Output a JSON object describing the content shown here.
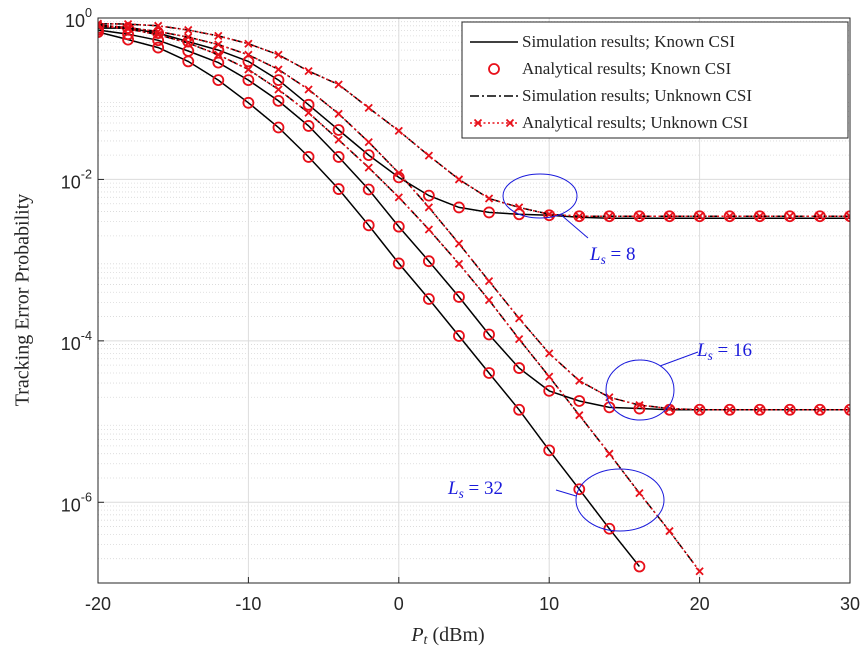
{
  "chart_data": {
    "type": "line",
    "ylabel": "Tracking Error Probability",
    "xlabel": "P_t (dBm)",
    "xlim": [
      -20,
      30
    ],
    "xticks": [
      -20,
      -10,
      0,
      10,
      20,
      30
    ],
    "ylim": [
      1e-07,
      1
    ],
    "ylog": true,
    "yticks": [
      {
        "value": 1,
        "label": "10^0"
      },
      {
        "value": 0.01,
        "label": "10^-2"
      },
      {
        "value": 0.0001,
        "label": "10^-4"
      },
      {
        "value": 1e-06,
        "label": "10^-6"
      }
    ],
    "grid": true,
    "legend": "upper right",
    "x": [
      -20,
      -18,
      -16,
      -14,
      -12,
      -10,
      -8,
      -6,
      -4,
      -2,
      0,
      2,
      4,
      6,
      8,
      10,
      12,
      14,
      16,
      18,
      20,
      22,
      24,
      26,
      28,
      30
    ],
    "series": [
      {
        "name": "Simulation results; Known CSI",
        "color": "#000000",
        "line": "solid",
        "marker": "none",
        "curves": [
          {
            "values": [
              0.75,
              0.75,
              0.65,
              0.51,
              0.4,
              0.29,
              0.17,
              0.084,
              0.041,
              0.02,
              0.0106,
              0.0063,
              0.0045,
              0.0039,
              0.0037,
              0.0036,
              0.0034,
              0.0033,
              0.0033,
              0.0033,
              0.0033,
              0.0033,
              0.0033,
              0.0033,
              0.0033,
              0.0033
            ]
          },
          {
            "values": [
              0.71,
              0.63,
              0.53,
              0.39,
              0.28,
              0.17,
              0.094,
              0.046,
              0.019,
              0.0075,
              0.0026,
              0.00097,
              0.00035,
              0.00012,
              4.6e-05,
              2.4e-05,
              1.8e-05,
              1.5e-05,
              1.45e-05,
              1.4e-05,
              1.4e-05,
              1.4e-05,
              1.4e-05,
              1.4e-05,
              1.4e-05,
              1.4e-05
            ]
          },
          {
            "values": [
              0.67,
              0.54,
              0.43,
              0.29,
              0.17,
              0.089,
              0.044,
              0.019,
              0.0076,
              0.0027,
              0.00091,
              0.00033,
              0.000115,
              4e-05,
              1.4e-05,
              4.4e-06,
              1.45e-06,
              4.7e-07,
              1.6e-07,
              null,
              null,
              null,
              null,
              null,
              null,
              null
            ]
          }
        ]
      },
      {
        "name": "Analytical results; Known CSI",
        "color": "#e8101a",
        "line": "none",
        "marker": "circle",
        "curves": [
          {
            "values": [
              0.75,
              0.75,
              0.65,
              0.51,
              0.4,
              0.29,
              0.17,
              0.084,
              0.041,
              0.02,
              0.0106,
              0.0063,
              0.0045,
              0.0039,
              0.0037,
              0.0036,
              0.0035,
              0.0035,
              0.0035,
              0.0035,
              0.0035,
              0.0035,
              0.0035,
              0.0035,
              0.0035,
              0.0035
            ]
          },
          {
            "values": [
              0.71,
              0.63,
              0.53,
              0.39,
              0.28,
              0.17,
              0.094,
              0.046,
              0.019,
              0.0075,
              0.0026,
              0.00097,
              0.00035,
              0.00012,
              4.6e-05,
              2.4e-05,
              1.8e-05,
              1.5e-05,
              1.45e-05,
              1.4e-05,
              1.4e-05,
              1.4e-05,
              1.4e-05,
              1.4e-05,
              1.4e-05,
              1.4e-05
            ]
          },
          {
            "values": [
              0.67,
              0.54,
              0.43,
              0.29,
              0.17,
              0.089,
              0.044,
              0.019,
              0.0076,
              0.0027,
              0.00091,
              0.00033,
              0.000115,
              4e-05,
              1.4e-05,
              4.4e-06,
              1.45e-06,
              4.7e-07,
              1.6e-07,
              null,
              null,
              null,
              null,
              null,
              null,
              null
            ]
          }
        ]
      },
      {
        "name": "Simulation results; Unknown CSI",
        "color": "#000000",
        "line": "dashdot",
        "marker": "none",
        "curves": [
          {
            "values": [
              0.85,
              0.84,
              0.8,
              0.71,
              0.6,
              0.48,
              0.35,
              0.22,
              0.15,
              0.077,
              0.04,
              0.0197,
              0.01,
              0.0058,
              0.0045,
              0.0037,
              0.0035,
              0.0035,
              0.0035,
              0.0035,
              0.0035,
              0.0035,
              0.0035,
              0.0035,
              0.0035,
              0.0035
            ]
          },
          {
            "values": [
              0.82,
              0.76,
              0.68,
              0.58,
              0.47,
              0.35,
              0.23,
              0.13,
              0.065,
              0.029,
              0.012,
              0.0045,
              0.0016,
              0.00055,
              0.00019,
              7e-05,
              3.2e-05,
              2e-05,
              1.6e-05,
              1.45e-05,
              1.4e-05,
              1.4e-05,
              1.4e-05,
              1.4e-05,
              1.4e-05,
              1.4e-05
            ]
          },
          {
            "values": [
              0.8,
              0.73,
              0.62,
              0.49,
              0.35,
              0.23,
              0.13,
              0.067,
              0.031,
              0.014,
              0.006,
              0.0024,
              0.0009,
              0.00032,
              0.000105,
              3.6e-05,
              1.2e-05,
              4e-06,
              1.3e-06,
              4.4e-07,
              1.4e-07,
              null,
              null,
              null,
              null,
              null
            ]
          }
        ]
      },
      {
        "name": "Analytical results; Unknown CSI",
        "color": "#e8101a",
        "line": "dotted",
        "marker": "x",
        "curves": [
          {
            "values": [
              0.85,
              0.84,
              0.8,
              0.71,
              0.6,
              0.48,
              0.35,
              0.22,
              0.15,
              0.077,
              0.04,
              0.0197,
              0.01,
              0.0058,
              0.0045,
              0.0037,
              0.0035,
              0.0035,
              0.0035,
              0.0035,
              0.0035,
              0.0035,
              0.0035,
              0.0035,
              0.0035,
              0.0035
            ]
          },
          {
            "values": [
              0.82,
              0.76,
              0.68,
              0.58,
              0.47,
              0.35,
              0.23,
              0.13,
              0.065,
              0.029,
              0.012,
              0.0045,
              0.0016,
              0.00055,
              0.00019,
              7e-05,
              3.2e-05,
              2e-05,
              1.6e-05,
              1.45e-05,
              1.4e-05,
              1.4e-05,
              1.4e-05,
              1.4e-05,
              1.4e-05,
              1.4e-05
            ]
          },
          {
            "values": [
              0.8,
              0.73,
              0.62,
              0.49,
              0.35,
              0.23,
              0.13,
              0.067,
              0.031,
              0.014,
              0.006,
              0.0024,
              0.0009,
              0.00032,
              0.000105,
              3.6e-05,
              1.2e-05,
              4e-06,
              1.3e-06,
              4.4e-07,
              1.4e-07,
              null,
              null,
              null,
              null,
              null
            ]
          }
        ]
      }
    ],
    "annotations": [
      {
        "text": "L_s = 8",
        "color": "#1a1adb"
      },
      {
        "text": "L_s = 16",
        "color": "#1a1adb"
      },
      {
        "text": "L_s = 32",
        "color": "#1a1adb"
      }
    ]
  }
}
